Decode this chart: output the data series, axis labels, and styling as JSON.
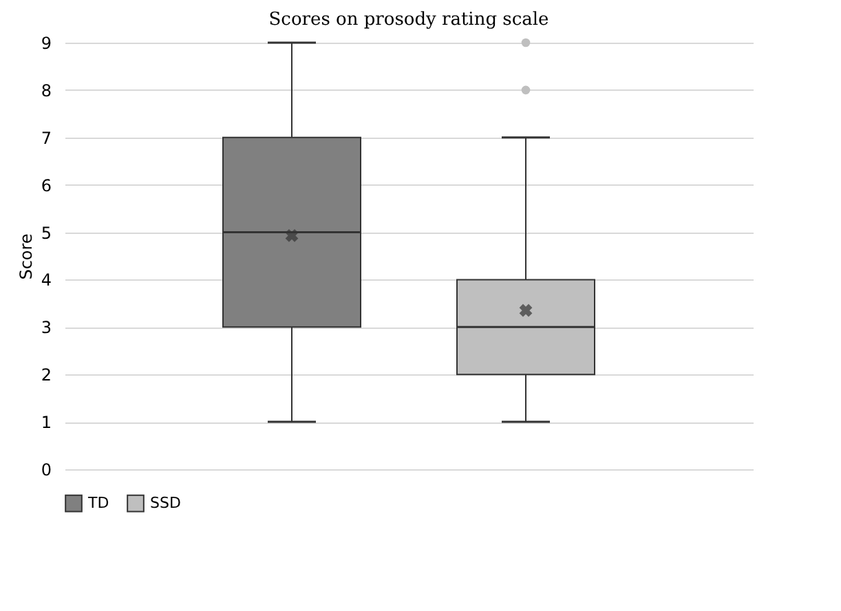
{
  "chart_data": {
    "type": "box",
    "title": "Scores on prosody rating scale",
    "ylabel": "Score",
    "categories": [
      null
    ],
    "ylim": [
      0,
      9
    ],
    "yticks": [
      0,
      1,
      2,
      3,
      4,
      5,
      6,
      7,
      8,
      9
    ],
    "grid": "y",
    "legend": "bottom",
    "series": [
      {
        "name": "TD",
        "color": "#808080",
        "boxes": [
          {
            "low": 1,
            "q1": 3,
            "median": 5,
            "q3": 7,
            "high": 9,
            "mean": 4.93
          }
        ]
      },
      {
        "name": "SSD",
        "color": "#bfbfbf",
        "boxes": [
          {
            "low": 1,
            "q1": 2,
            "median": 3,
            "q3": 4,
            "high": 7,
            "mean": 3.35,
            "outliers": [
              8,
              9
            ]
          }
        ]
      }
    ]
  }
}
